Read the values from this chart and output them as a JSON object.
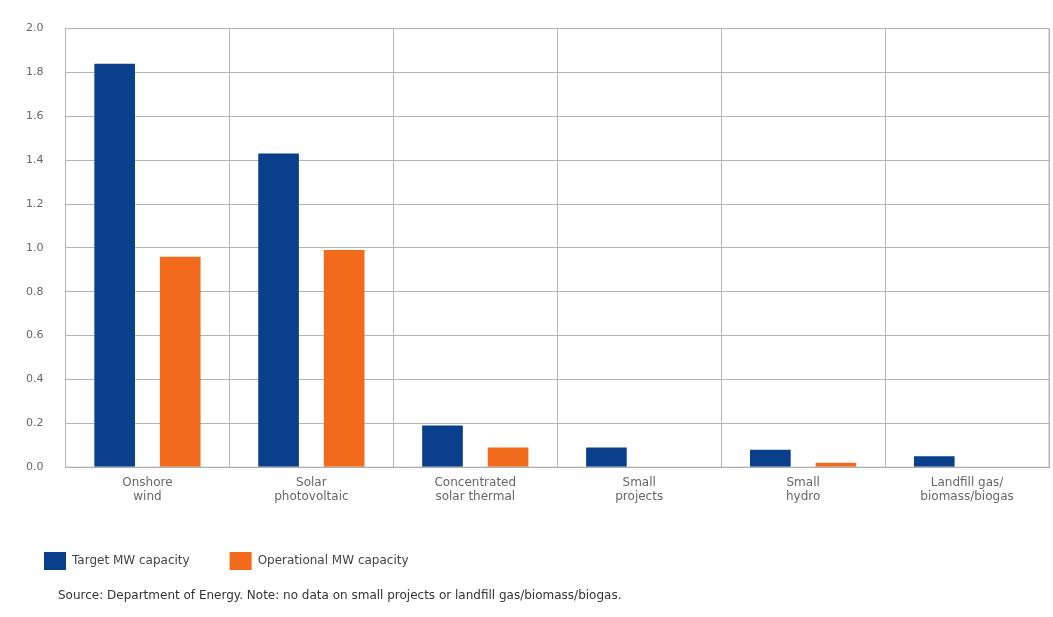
{
  "chart_data": {
    "type": "bar",
    "categories": [
      "Onshore\nwind",
      "Solar\nphotovoltaic",
      "Concentrated\nsolar thermal",
      "Small\nprojects",
      "Small\nhydro",
      "Landfill gas/\nbiomass/biogas"
    ],
    "series": [
      {
        "name": "Target MW capacity",
        "color": "#0a3f8c",
        "values": [
          1.84,
          1.43,
          0.19,
          0.09,
          0.08,
          0.05
        ]
      },
      {
        "name": "Operational MW capacity",
        "color": "#f26b1d",
        "values": [
          0.96,
          0.99,
          0.09,
          null,
          0.02,
          null
        ]
      }
    ],
    "ylim": [
      0,
      2
    ],
    "yticks": [
      {
        "value": 0,
        "label": "0.0"
      },
      {
        "value": 0.2,
        "label": "0.2"
      },
      {
        "value": 0.4,
        "label": "0.4"
      },
      {
        "value": 0.6,
        "label": "0.6"
      },
      {
        "value": 0.8,
        "label": "0.8"
      },
      {
        "value": 1,
        "label": "1.0"
      },
      {
        "value": 1.2,
        "label": "1.2"
      },
      {
        "value": 1.4,
        "label": "1.4"
      },
      {
        "value": 1.6,
        "label": "1.6"
      },
      {
        "value": 1.8,
        "label": "1.8"
      },
      {
        "value": 2,
        "label": "2.0"
      }
    ],
    "grid": true,
    "legend": "bottom left",
    "annotations": [
      "Source: Department of Energy. Note: no data on small projects or landfill gas/biomass/biogas."
    ]
  }
}
